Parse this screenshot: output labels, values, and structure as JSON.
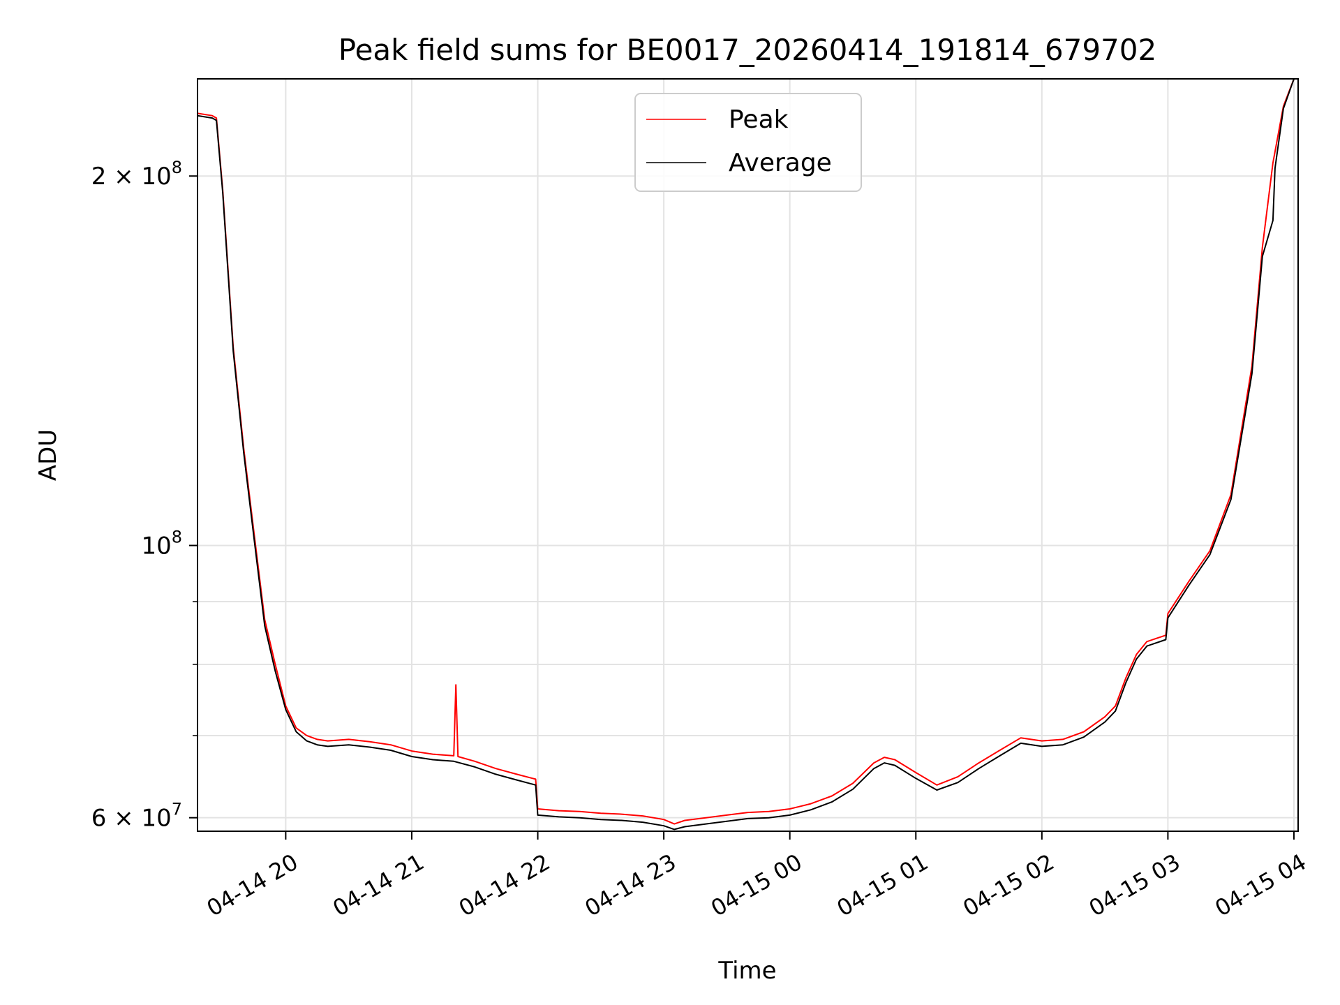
{
  "chart_data": {
    "type": "line",
    "title": "Peak field sums for BE0017_20260414_191814_679702",
    "xlabel": "Time",
    "ylabel": "ADU",
    "yscale": "log",
    "xlim": [
      "2026-04-14 19:18",
      "2026-04-15 04:02"
    ],
    "ylim": [
      58500000,
      240000000
    ],
    "x_ticks": [
      {
        "value": "2026-04-14 20:00",
        "label": "04-14 20"
      },
      {
        "value": "2026-04-14 21:00",
        "label": "04-14 21"
      },
      {
        "value": "2026-04-14 22:00",
        "label": "04-14 22"
      },
      {
        "value": "2026-04-14 23:00",
        "label": "04-14 23"
      },
      {
        "value": "2026-04-15 00:00",
        "label": "04-15 00"
      },
      {
        "value": "2026-04-15 01:00",
        "label": "04-15 01"
      },
      {
        "value": "2026-04-15 02:00",
        "label": "04-15 02"
      },
      {
        "value": "2026-04-15 03:00",
        "label": "04-15 03"
      },
      {
        "value": "2026-04-15 04:00",
        "label": "04-15 04"
      }
    ],
    "y_major_ticks": [
      {
        "value": 60000000,
        "base": "6 × 10",
        "exp": "7"
      },
      {
        "value": 100000000,
        "base": "10",
        "exp": "8"
      },
      {
        "value": 200000000,
        "base": "2 × 10",
        "exp": "8"
      }
    ],
    "y_minor_ticks": [
      70000000,
      80000000,
      90000000
    ],
    "grid": true,
    "legend_position": "top-center",
    "series": [
      {
        "name": "Peak",
        "color": "#ff0000",
        "x": [
          "2026-04-14 19:18",
          "2026-04-14 19:25",
          "2026-04-14 19:27",
          "2026-04-14 19:30",
          "2026-04-14 19:35",
          "2026-04-14 19:40",
          "2026-04-14 19:45",
          "2026-04-14 19:50",
          "2026-04-14 19:55",
          "2026-04-14 20:00",
          "2026-04-14 20:05",
          "2026-04-14 20:10",
          "2026-04-14 20:15",
          "2026-04-14 20:20",
          "2026-04-14 20:30",
          "2026-04-14 20:40",
          "2026-04-14 20:50",
          "2026-04-14 21:00",
          "2026-04-14 21:10",
          "2026-04-14 21:20",
          "2026-04-14 21:21",
          "2026-04-14 21:22",
          "2026-04-14 21:30",
          "2026-04-14 21:40",
          "2026-04-14 21:50",
          "2026-04-14 21:59",
          "2026-04-14 22:00",
          "2026-04-14 22:10",
          "2026-04-14 22:20",
          "2026-04-14 22:30",
          "2026-04-14 22:40",
          "2026-04-14 22:50",
          "2026-04-14 23:00",
          "2026-04-14 23:05",
          "2026-04-14 23:10",
          "2026-04-14 23:20",
          "2026-04-14 23:30",
          "2026-04-14 23:40",
          "2026-04-14 23:50",
          "2026-04-15 00:00",
          "2026-04-15 00:10",
          "2026-04-15 00:20",
          "2026-04-15 00:30",
          "2026-04-15 00:40",
          "2026-04-15 00:45",
          "2026-04-15 00:50",
          "2026-04-15 01:00",
          "2026-04-15 01:10",
          "2026-04-15 01:20",
          "2026-04-15 01:30",
          "2026-04-15 01:40",
          "2026-04-15 01:50",
          "2026-04-15 02:00",
          "2026-04-15 02:10",
          "2026-04-15 02:20",
          "2026-04-15 02:30",
          "2026-04-15 02:35",
          "2026-04-15 02:40",
          "2026-04-15 02:45",
          "2026-04-15 02:50",
          "2026-04-15 02:59",
          "2026-04-15 03:00",
          "2026-04-15 03:10",
          "2026-04-15 03:20",
          "2026-04-15 03:30",
          "2026-04-15 03:40",
          "2026-04-15 03:45",
          "2026-04-15 03:50",
          "2026-04-15 03:55",
          "2026-04-15 04:00",
          "2026-04-15 04:02"
        ],
        "values": [
          225000000,
          224000000,
          223000000,
          195000000,
          145000000,
          120000000,
          102000000,
          87000000,
          80000000,
          74000000,
          71000000,
          70000000,
          69500000,
          69300000,
          69500000,
          69200000,
          68800000,
          68000000,
          67600000,
          67400000,
          77000000,
          67300000,
          66700000,
          65800000,
          65100000,
          64500000,
          61000000,
          60800000,
          60700000,
          60500000,
          60400000,
          60200000,
          59800000,
          59300000,
          59700000,
          60000000,
          60300000,
          60600000,
          60700000,
          61000000,
          61600000,
          62500000,
          64000000,
          66500000,
          67200000,
          66900000,
          65300000,
          63800000,
          64800000,
          66500000,
          68100000,
          69700000,
          69300000,
          69500000,
          70500000,
          72500000,
          74000000,
          78000000,
          81500000,
          83500000,
          84500000,
          88000000,
          93500000,
          99000000,
          110000000,
          140000000,
          175000000,
          205000000,
          228000000,
          240000000,
          240000000
        ]
      },
      {
        "name": "Average",
        "color": "#000000",
        "x": [
          "2026-04-14 19:18",
          "2026-04-14 19:25",
          "2026-04-14 19:27",
          "2026-04-14 19:30",
          "2026-04-14 19:35",
          "2026-04-14 19:40",
          "2026-04-14 19:45",
          "2026-04-14 19:50",
          "2026-04-14 19:55",
          "2026-04-14 20:00",
          "2026-04-14 20:05",
          "2026-04-14 20:10",
          "2026-04-14 20:15",
          "2026-04-14 20:20",
          "2026-04-14 20:30",
          "2026-04-14 20:40",
          "2026-04-14 20:50",
          "2026-04-14 21:00",
          "2026-04-14 21:10",
          "2026-04-14 21:20",
          "2026-04-14 21:30",
          "2026-04-14 21:40",
          "2026-04-14 21:50",
          "2026-04-14 21:59",
          "2026-04-14 22:00",
          "2026-04-14 22:10",
          "2026-04-14 22:20",
          "2026-04-14 22:30",
          "2026-04-14 22:40",
          "2026-04-14 22:50",
          "2026-04-14 23:00",
          "2026-04-14 23:05",
          "2026-04-14 23:10",
          "2026-04-14 23:20",
          "2026-04-14 23:30",
          "2026-04-14 23:40",
          "2026-04-14 23:50",
          "2026-04-15 00:00",
          "2026-04-15 00:10",
          "2026-04-15 00:20",
          "2026-04-15 00:30",
          "2026-04-15 00:40",
          "2026-04-15 00:45",
          "2026-04-15 00:50",
          "2026-04-15 01:00",
          "2026-04-15 01:10",
          "2026-04-15 01:20",
          "2026-04-15 01:30",
          "2026-04-15 01:40",
          "2026-04-15 01:50",
          "2026-04-15 02:00",
          "2026-04-15 02:10",
          "2026-04-15 02:20",
          "2026-04-15 02:30",
          "2026-04-15 02:35",
          "2026-04-15 02:40",
          "2026-04-15 02:45",
          "2026-04-15 02:50",
          "2026-04-15 02:59",
          "2026-04-15 03:00",
          "2026-04-15 03:10",
          "2026-04-15 03:20",
          "2026-04-15 03:30",
          "2026-04-15 03:40",
          "2026-04-15 03:45",
          "2026-04-15 03:50",
          "2026-04-15 03:51",
          "2026-04-15 03:55",
          "2026-04-15 04:00",
          "2026-04-15 04:02"
        ],
        "values": [
          224000000,
          223000000,
          222000000,
          194000000,
          144000000,
          119000000,
          101000000,
          86000000,
          79000000,
          73500000,
          70500000,
          69300000,
          68800000,
          68600000,
          68800000,
          68500000,
          68100000,
          67300000,
          66900000,
          66700000,
          66000000,
          65100000,
          64400000,
          63800000,
          60300000,
          60100000,
          60000000,
          59800000,
          59700000,
          59500000,
          59100000,
          58700000,
          59000000,
          59300000,
          59600000,
          59900000,
          60000000,
          60300000,
          60900000,
          61800000,
          63300000,
          65800000,
          66500000,
          66200000,
          64600000,
          63200000,
          64100000,
          65800000,
          67400000,
          69000000,
          68600000,
          68800000,
          69800000,
          71800000,
          73300000,
          77300000,
          80800000,
          82800000,
          83800000,
          87300000,
          92800000,
          98300000,
          109000000,
          138000000,
          172000000,
          184000000,
          203000000,
          227000000,
          240000000,
          240000000
        ]
      }
    ]
  }
}
